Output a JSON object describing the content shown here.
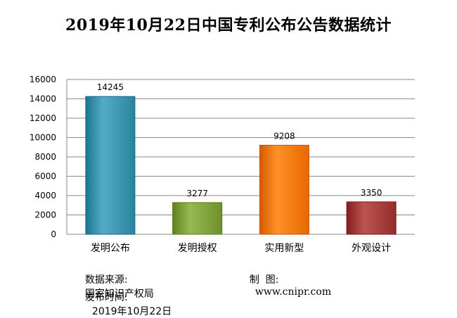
{
  "chart_data": {
    "type": "bar",
    "title": "2019年10月22日中国专利公布公告数据统计",
    "categories": [
      "发明公布",
      "发明授权",
      "实用新型",
      "外观设计"
    ],
    "values": [
      14245,
      3277,
      9208,
      3350
    ],
    "colors": [
      "#3a93ad",
      "#7ea03a",
      "#f5780e",
      "#a33b3a"
    ],
    "ylim": [
      0,
      16000
    ],
    "yticks": [
      "0",
      "2000",
      "4000",
      "6000",
      "8000",
      "10000",
      "12000",
      "14000",
      "16000"
    ],
    "grid": true,
    "legend": "none"
  },
  "footer": {
    "source_label": "数据来源:",
    "source_value": "国家知识产权局",
    "maker_label": "制  图:",
    "maker_value": "www.cnipr.com",
    "date_label": "发布时间:",
    "date_value": "2019年10月22日"
  }
}
